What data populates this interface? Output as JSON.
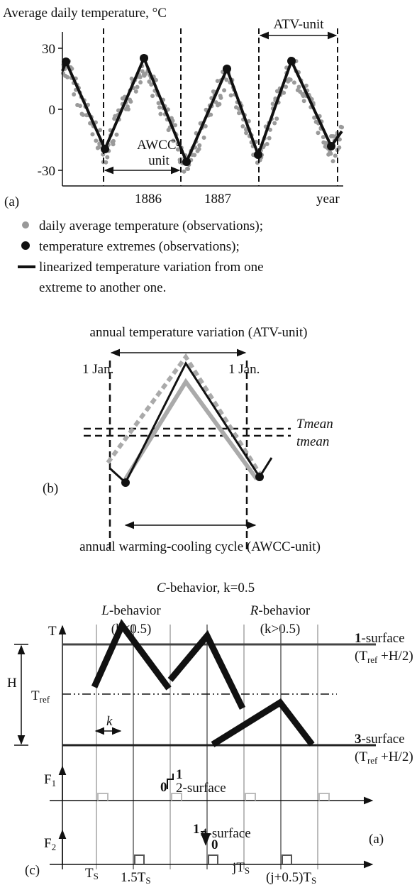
{
  "panel_a": {
    "title": "Average daily temperature, °C",
    "yticks": [
      "30",
      "0",
      "-30"
    ],
    "xticks": [
      "1886",
      "1887",
      "year"
    ],
    "atv_label": "ATV-unit",
    "awcc_label": [
      "AWCC-",
      "unit"
    ],
    "tag": "(a)"
  },
  "legend": {
    "items": [
      "daily average temperature (observations);",
      "temperature extremes (observations);",
      "linearized temperature variation from one",
      "extreme to another one."
    ]
  },
  "panel_b": {
    "title": "annual temperature variation (ATV-unit)",
    "jan": [
      "1 Jan.",
      "1 Jan."
    ],
    "tmean_upper": "Tmean",
    "tmean_lower": "tmean",
    "tag": "(b)",
    "bottom": "annual warming-cooling cycle (AWCC-unit)"
  },
  "panel_c": {
    "title": [
      "C",
      "-behavior, k=0.5"
    ],
    "left": [
      "L",
      "-behavior",
      "(k<0.5)"
    ],
    "right": [
      "R",
      "-behavior",
      "(k>0.5)"
    ],
    "T": "T",
    "H": "H",
    "Tref": [
      "T",
      "ref"
    ],
    "k": "k",
    "surface1": [
      "1",
      "-surface"
    ],
    "surface3": [
      "3",
      "-surface"
    ],
    "surface_note": [
      "(T",
      "ref",
      " +H/2)"
    ],
    "F1": [
      "F",
      "1"
    ],
    "F2": [
      "F",
      "2"
    ],
    "surface2": [
      "0",
      "1",
      "2-surface"
    ],
    "surface4": [
      "1",
      "4-surface",
      "0"
    ],
    "tag_a": "(a)",
    "tag_c": "(c)",
    "xlabels": [
      [
        "T",
        "S"
      ],
      [
        "1.5T",
        "S"
      ],
      [
        "jT",
        "S"
      ],
      [
        "(j+0.5)T",
        "S"
      ]
    ]
  }
}
